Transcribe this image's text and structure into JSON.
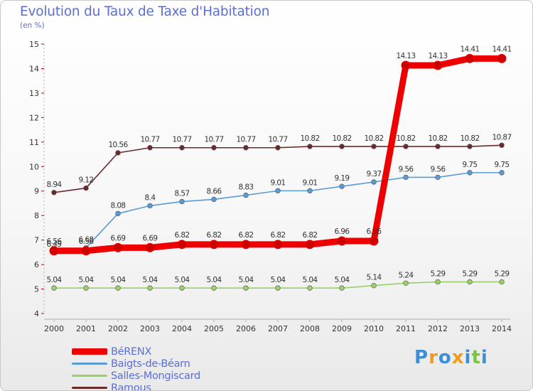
{
  "header": {
    "title": "Evolution du Taux de Taxe d'Habitation",
    "unit": "(en %)"
  },
  "chart_data": {
    "type": "line",
    "title": "Evolution du Taux de Taxe d'Habitation",
    "ylabel": "(en %)",
    "xlabel": "",
    "ylim": [
      4,
      15
    ],
    "yticks": [
      "4",
      "5",
      "6",
      "7",
      "8",
      "9",
      "10",
      "11",
      "12",
      "13",
      "14",
      "15"
    ],
    "categories": [
      "2000",
      "2001",
      "2002",
      "2003",
      "2004",
      "2005",
      "2006",
      "2007",
      "2008",
      "2009",
      "2010",
      "2011",
      "2012",
      "2013",
      "2014"
    ],
    "grid": false,
    "legend_position": "bottom-left",
    "series": [
      {
        "name": "Ramous",
        "color": "#6b2a2a",
        "values": [
          8.94,
          9.12,
          10.56,
          10.77,
          10.77,
          10.77,
          10.77,
          10.77,
          10.82,
          10.82,
          10.82,
          10.82,
          10.82,
          10.82,
          10.87
        ],
        "labels": [
          "8.94",
          "9.12",
          "10.56",
          "10.77",
          "10.77",
          "10.77",
          "10.77",
          "10.77",
          "10.82",
          "10.82",
          "10.82",
          "10.82",
          "10.82",
          "10.82",
          "10.87"
        ]
      },
      {
        "name": "Baigts-de-Béarn",
        "color": "#5b9bd5",
        "values": [
          6.49,
          6.68,
          8.08,
          8.4,
          8.57,
          8.66,
          8.83,
          9.01,
          9.01,
          9.19,
          9.37,
          9.56,
          9.56,
          9.75,
          9.75
        ],
        "labels": [
          "6.49",
          "6.68",
          "8.08",
          "8.4",
          "8.57",
          "8.66",
          "8.83",
          "9.01",
          "9.01",
          "9.19",
          "9.37",
          "9.56",
          "9.56",
          "9.75",
          "9.75"
        ]
      },
      {
        "name": "Salles-Mongiscard",
        "color": "#99d068",
        "values": [
          5.04,
          5.04,
          5.04,
          5.04,
          5.04,
          5.04,
          5.04,
          5.04,
          5.04,
          5.04,
          5.14,
          5.24,
          5.29,
          5.29,
          5.29
        ],
        "labels": [
          "5.04",
          "5.04",
          "5.04",
          "5.04",
          "5.04",
          "5.04",
          "5.04",
          "5.04",
          "5.04",
          "5.04",
          "5.14",
          "5.24",
          "5.29",
          "5.29",
          "5.29"
        ]
      },
      {
        "name": "BéRENX",
        "color": "#ee0000",
        "values": [
          6.56,
          6.56,
          6.69,
          6.69,
          6.82,
          6.82,
          6.82,
          6.82,
          6.82,
          6.96,
          6.96,
          14.13,
          14.13,
          14.41,
          14.41
        ],
        "labels": [
          "6.56",
          "6.56",
          "6.69",
          "6.69",
          "6.82",
          "6.82",
          "6.82",
          "6.82",
          "6.82",
          "6.96",
          "6.96",
          "14.13",
          "14.13",
          "14.41",
          "14.41"
        ]
      }
    ]
  },
  "legend": {
    "items": [
      {
        "label": "BéRENX",
        "color": "#ee0000"
      },
      {
        "label": "Baigts-de-Béarn",
        "color": "#5b9bd5"
      },
      {
        "label": "Salles-Mongiscard",
        "color": "#99d068"
      },
      {
        "label": "Ramous",
        "color": "#6b2a2a"
      }
    ]
  },
  "logo": {
    "text": "Proxiti",
    "letters": [
      "P",
      "r",
      "o",
      "x",
      "i",
      "t",
      "i"
    ],
    "colors": [
      "#3a8fd8",
      "#f29a1e",
      "#3a8fd8",
      "#f29a1e",
      "#3a8fd8",
      "#7cc242",
      "#3a8fd8"
    ]
  }
}
